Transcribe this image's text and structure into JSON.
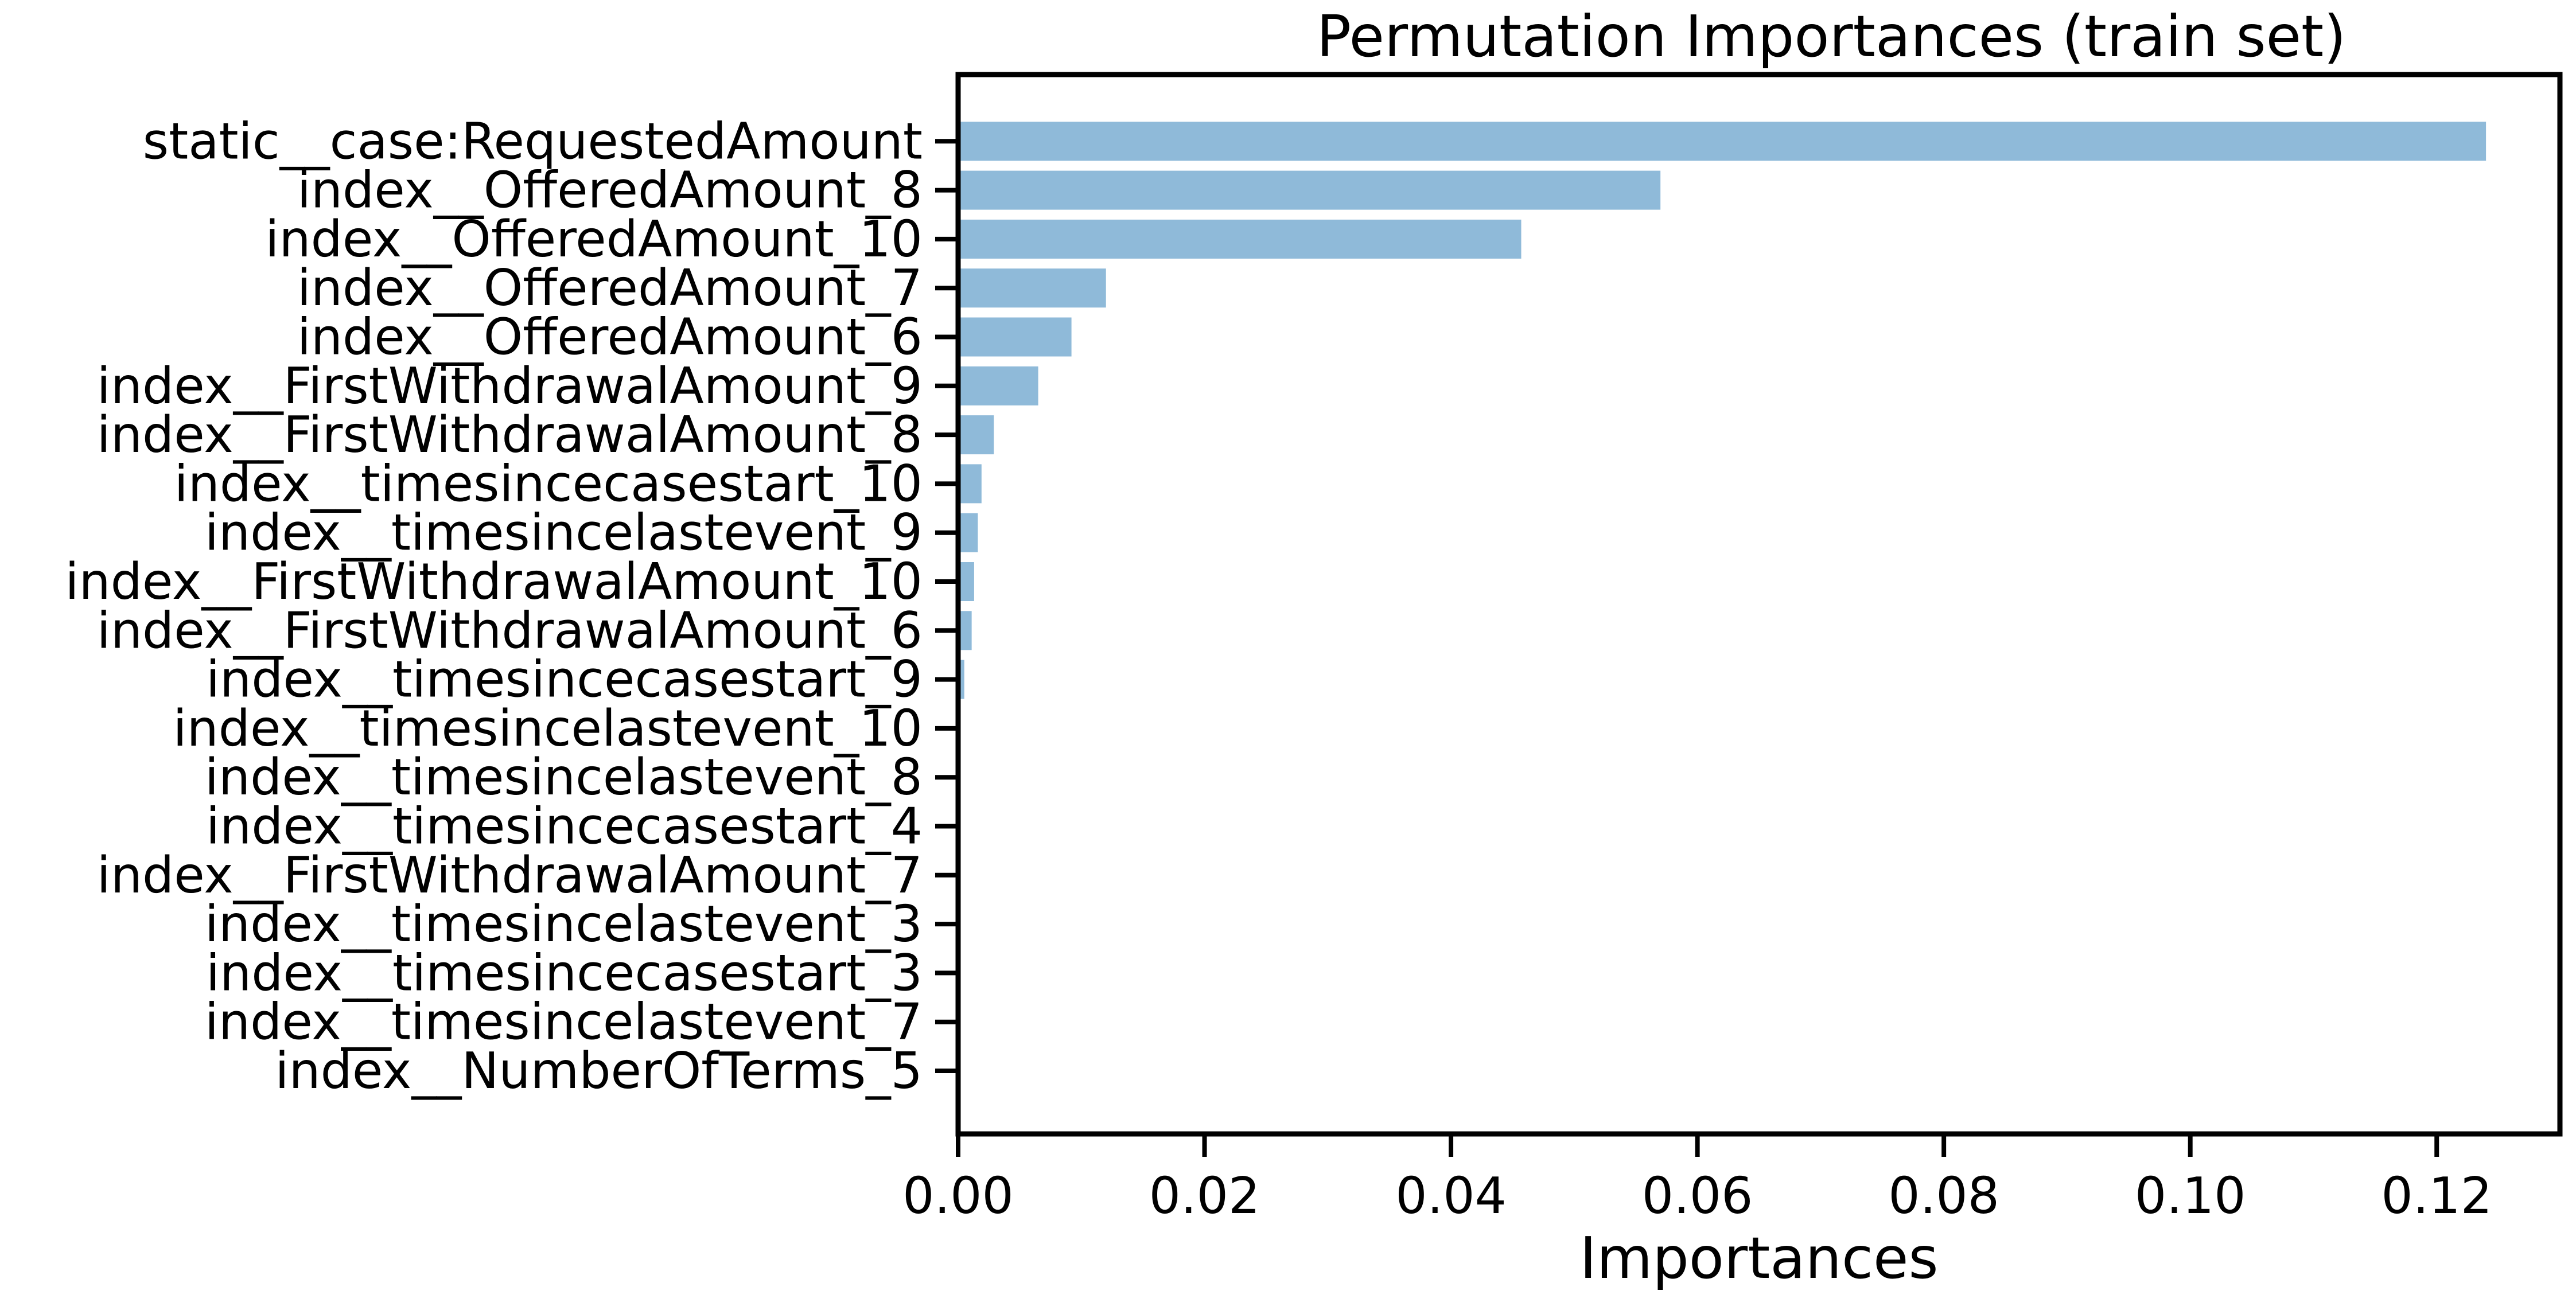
{
  "chart_data": {
    "type": "bar",
    "orientation": "horizontal",
    "title": "Permutation Importances (train set)",
    "xlabel": "Importances",
    "ylabel": "",
    "xlim": [
      0.0,
      0.13
    ],
    "xticks": [
      0.0,
      0.02,
      0.04,
      0.06,
      0.08,
      0.1,
      0.12
    ],
    "xtick_labels": [
      "0.00",
      "0.02",
      "0.04",
      "0.06",
      "0.08",
      "0.10",
      "0.12"
    ],
    "grid": false,
    "bar_color": "#8fbad9",
    "categories": [
      "index__NumberOfTerms_5",
      "index__timesincelastevent_7",
      "index__timesincecasestart_3",
      "index__timesincelastevent_3",
      "index__FirstWithdrawalAmount_7",
      "index__timesincecasestart_4",
      "index__timesincelastevent_8",
      "index__timesincelastevent_10",
      "index__timesincecasestart_9",
      "index__FirstWithdrawalAmount_6",
      "index__FirstWithdrawalAmount_10",
      "index__timesincelastevent_9",
      "index__timesincecasestart_10",
      "index__FirstWithdrawalAmount_8",
      "index__FirstWithdrawalAmount_9",
      "index__OfferedAmount_6",
      "index__OfferedAmount_7",
      "index__OfferedAmount_10",
      "index__OfferedAmount_8",
      "static__case:RequestedAmount"
    ],
    "values": [
      0.0,
      0.0,
      0.0,
      0.0,
      0.0,
      0.0,
      0.0,
      0.0,
      0.0005,
      0.0011,
      0.0013,
      0.0016,
      0.0019,
      0.0029,
      0.0065,
      0.0092,
      0.012,
      0.0457,
      0.057,
      0.124
    ]
  }
}
